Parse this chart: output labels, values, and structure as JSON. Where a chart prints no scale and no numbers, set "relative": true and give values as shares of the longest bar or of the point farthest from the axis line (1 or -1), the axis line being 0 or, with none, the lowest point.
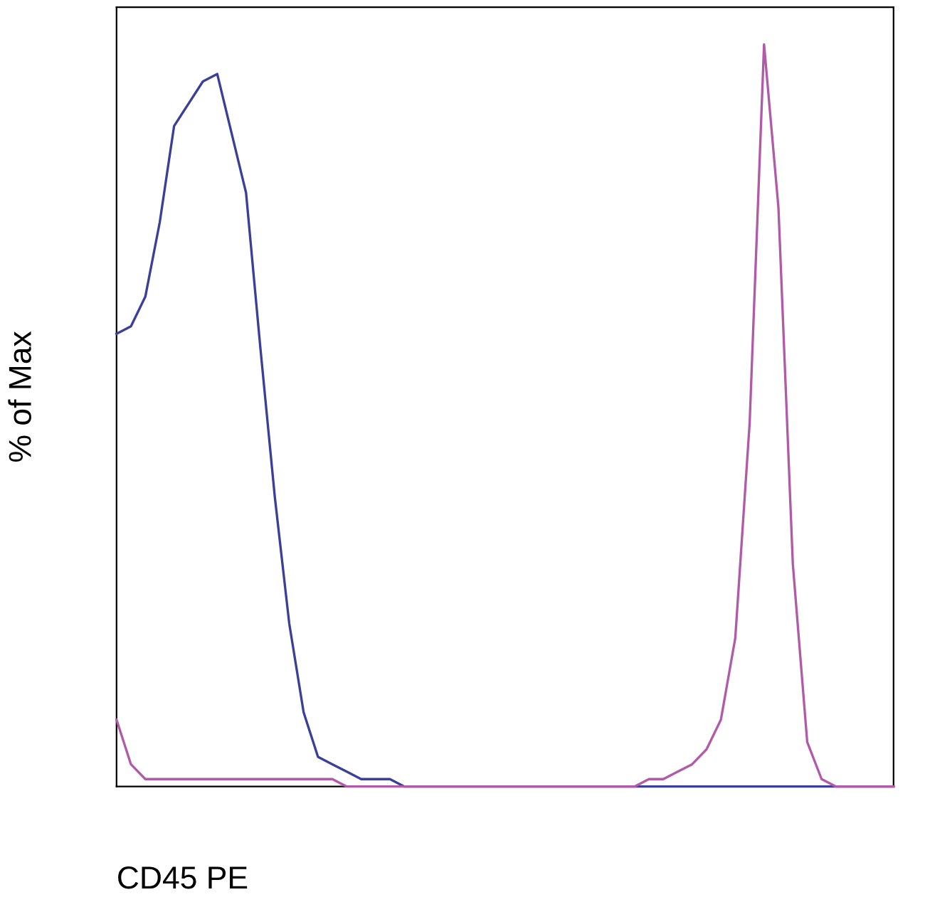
{
  "chart_data": {
    "type": "line",
    "relative": true,
    "xlabel": "CD45 PE",
    "ylabel": "% of Max",
    "categories": [
      null,
      null,
      null,
      null,
      null,
      null,
      null,
      null,
      null,
      null,
      null,
      null,
      null,
      null,
      null,
      null,
      null,
      null,
      null,
      null,
      null,
      null,
      null,
      null,
      null,
      null,
      null,
      null,
      null,
      null,
      null,
      null,
      null,
      null,
      null,
      null,
      null,
      null,
      null,
      null,
      null,
      null,
      null,
      null,
      null,
      null,
      null,
      null,
      null,
      null,
      null,
      null,
      null,
      null,
      null
    ],
    "series": [
      {
        "color": "#3a3f9a",
        "values": [
          0.61,
          0.62,
          0.66,
          0.76,
          0.89,
          0.92,
          0.95,
          0.96,
          0.88,
          0.8,
          0.59,
          0.39,
          0.22,
          0.1,
          0.04,
          0.03,
          0.02,
          0.01,
          0.01,
          0.01,
          0,
          0,
          0,
          0,
          0,
          0,
          0,
          0,
          0,
          0,
          0,
          0,
          0,
          0,
          0,
          0,
          0,
          0,
          0,
          0,
          0,
          0,
          0,
          0,
          0,
          0,
          0,
          0,
          0,
          0,
          0,
          0,
          0,
          0,
          0
        ]
      },
      {
        "color": "#b05aa8",
        "values": [
          0.09,
          0.03,
          0.01,
          0.01,
          0.01,
          0.01,
          0.01,
          0.01,
          0.01,
          0.01,
          0.01,
          0.01,
          0.01,
          0.01,
          0.01,
          0.01,
          0,
          0,
          0,
          0,
          0,
          0,
          0,
          0,
          0,
          0,
          0,
          0,
          0,
          0,
          0,
          0,
          0,
          0,
          0,
          0,
          0,
          0.01,
          0.01,
          0.02,
          0.03,
          0.05,
          0.09,
          0.2,
          0.49,
          1.0,
          0.78,
          0.3,
          0.06,
          0.01,
          0,
          0,
          0,
          0,
          0
        ]
      }
    ],
    "tick_labels": false
  }
}
